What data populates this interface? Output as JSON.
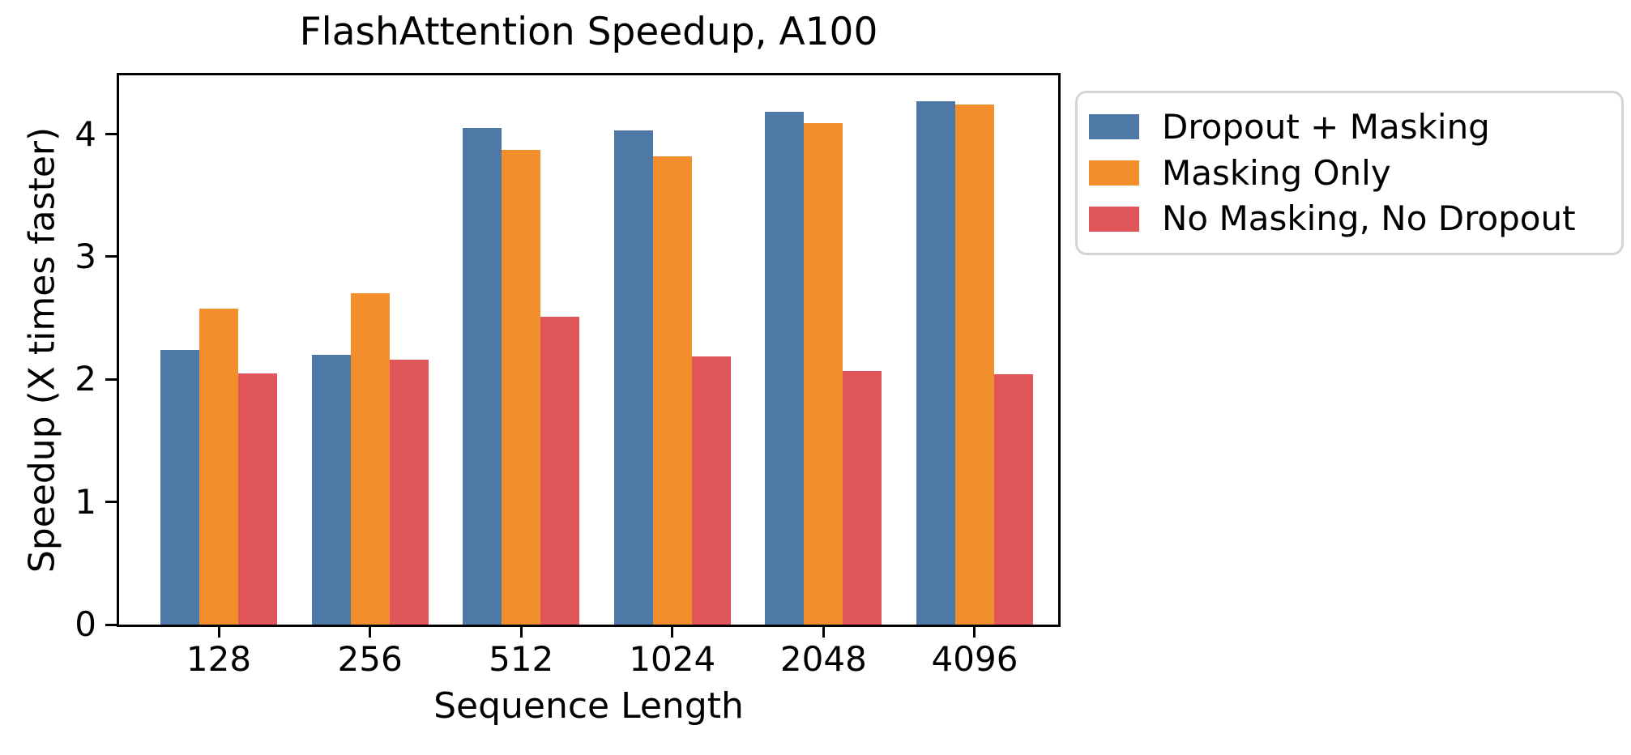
{
  "chart_data": {
    "type": "bar",
    "title": "FlashAttention Speedup, A100",
    "xlabel": "Sequence Length",
    "ylabel": "Speedup (X times faster)",
    "categories": [
      "128",
      "256",
      "512",
      "1024",
      "2048",
      "4096"
    ],
    "series": [
      {
        "name": "Dropout + Masking",
        "color": "#4E79A7",
        "values": [
          2.24,
          2.2,
          4.05,
          4.03,
          4.18,
          4.27
        ]
      },
      {
        "name": "Masking Only",
        "color": "#F28E2B",
        "values": [
          2.58,
          2.7,
          3.87,
          3.82,
          4.09,
          4.24
        ]
      },
      {
        "name": "No Masking, No Dropout",
        "color": "#E15759",
        "values": [
          2.05,
          2.16,
          2.51,
          2.19,
          2.07,
          2.04
        ]
      }
    ],
    "ylim": [
      0,
      4.48
    ],
    "yticks": [
      0,
      1,
      2,
      3,
      4
    ],
    "grid": false,
    "legend_position": "outside-right-top",
    "axis_color": "#000000",
    "legend_border_color": "#d4d4d4"
  }
}
